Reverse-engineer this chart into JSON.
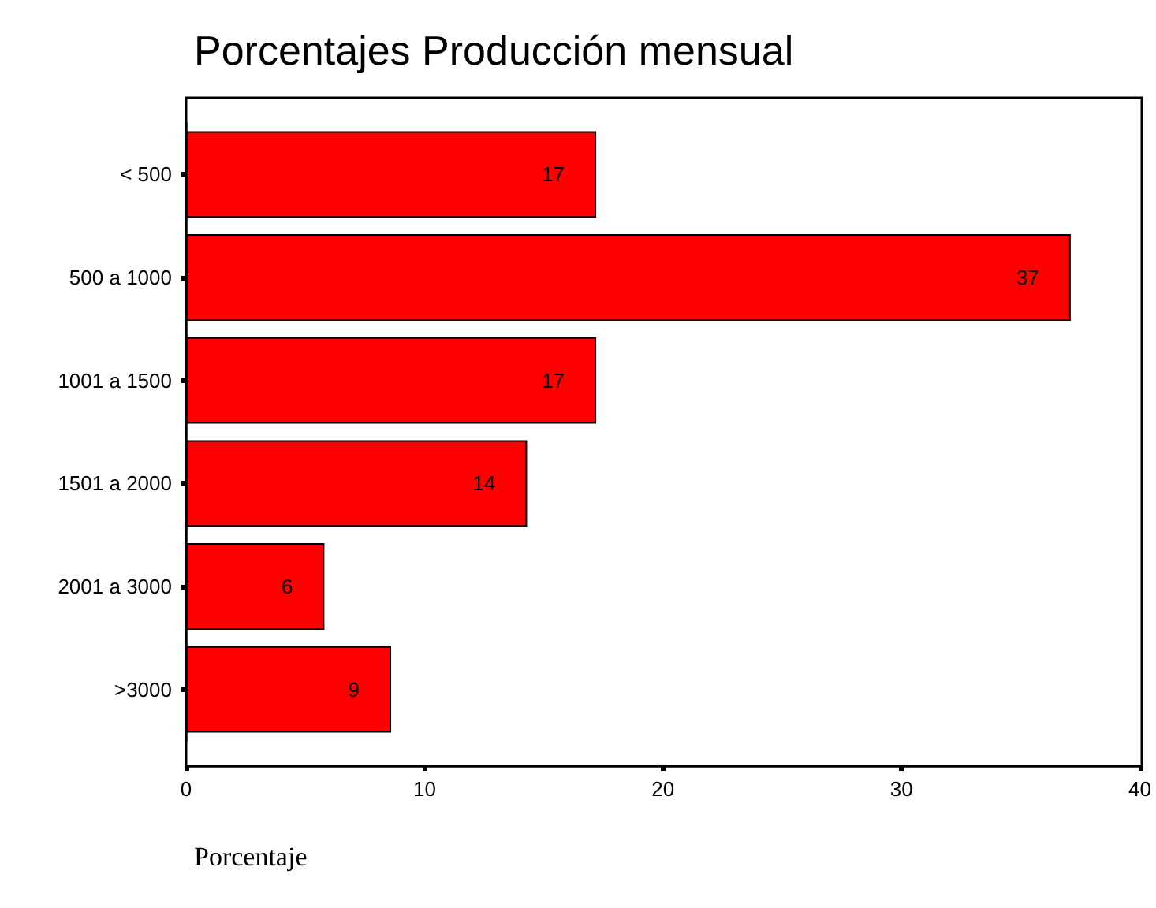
{
  "chart_data": {
    "type": "bar",
    "orientation": "horizontal",
    "title": "Porcentajes Producción mensual",
    "xlabel": "Porcentaje",
    "categories": [
      "< 500",
      "500 a 1000",
      "1001 a 1500",
      "1501 a 2000",
      "2001 a 3000",
      ">3000"
    ],
    "values": [
      17.2,
      37.1,
      17.2,
      14.3,
      5.8,
      8.6
    ],
    "value_labels": [
      "17",
      "37",
      "17",
      "14",
      "6",
      "9"
    ],
    "color": "#ff0000",
    "xlim": [
      0,
      40
    ],
    "xticks": [
      0,
      10,
      20,
      30,
      40
    ],
    "grid": false
  }
}
